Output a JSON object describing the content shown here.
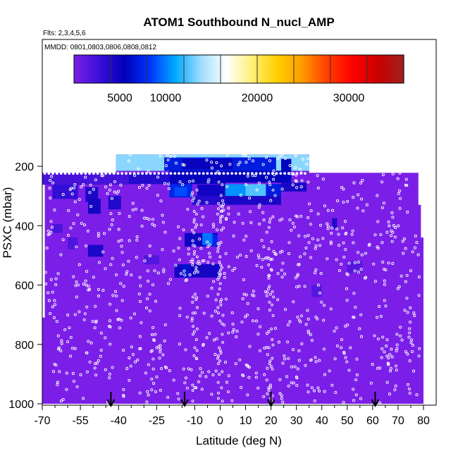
{
  "chart_data": {
    "type": "heatmap",
    "title": "ATOM1 Southbound N_nucl_AMP",
    "flights_note": "Flts: 2,3,4,5,6",
    "dates_note": "MMDD: 0801,0803,0806,0808,0812",
    "xlabel": "Latitude (deg N)",
    "ylabel": "PSXC (mbar)",
    "xlim": [
      -70,
      80
    ],
    "ylim": [
      1000,
      50
    ],
    "x_ticks": [
      -70,
      -55,
      -40,
      -25,
      -10,
      0,
      10,
      20,
      30,
      40,
      50,
      60,
      70,
      80
    ],
    "x_minor_ticks": [
      -65,
      -60,
      -50,
      -45,
      -35,
      -30,
      -20,
      -15,
      -5,
      5,
      15,
      25,
      35,
      45,
      55,
      65,
      75
    ],
    "y_ticks": [
      200,
      400,
      600,
      800,
      1000
    ],
    "colorbar": {
      "range": [
        0,
        36000
      ],
      "tick_labels": [
        5000,
        10000,
        20000,
        30000
      ],
      "stops": [
        "#7a1fe6",
        "#3a10d8",
        "#0000b8",
        "#0035ff",
        "#00aaff",
        "#9edcff",
        "#ffffff",
        "#fff07a",
        "#ffd000",
        "#ff9a00",
        "#ff3c00",
        "#ff0000",
        "#c80000",
        "#a02020"
      ],
      "divisions": [
        4000,
        8000,
        12000,
        16000,
        20000,
        24000,
        28000,
        32000,
        36000
      ]
    },
    "background_color": "#7b1fe8",
    "region_outline": [
      [
        -70,
        1000
      ],
      [
        -70,
        710
      ],
      [
        -69,
        710
      ],
      [
        -69,
        222
      ],
      [
        -41,
        222
      ],
      [
        -41,
        160
      ],
      [
        35,
        160
      ],
      [
        35,
        222
      ],
      [
        78,
        222
      ],
      [
        78,
        330
      ],
      [
        79,
        330
      ],
      [
        79,
        440
      ],
      [
        80,
        440
      ],
      [
        80,
        1000
      ]
    ],
    "cells": [
      {
        "x": [
          -41,
          35
        ],
        "p": [
          160,
          215
        ],
        "v": 13500
      },
      {
        "x": [
          -22,
          22
        ],
        "p": [
          170,
          215
        ],
        "v": 7000
      },
      {
        "x": [
          -15,
          5
        ],
        "p": [
          175,
          210
        ],
        "v": 5200
      },
      {
        "x": [
          2,
          24
        ],
        "p": [
          215,
          255
        ],
        "v": 5600
      },
      {
        "x": [
          -20,
          2
        ],
        "p": [
          215,
          260
        ],
        "v": 5200
      },
      {
        "x": [
          24,
          28
        ],
        "p": [
          175,
          255
        ],
        "v": 5800
      },
      {
        "x": [
          -36,
          -20
        ],
        "p": [
          222,
          260
        ],
        "v": 3800
      },
      {
        "x": [
          -70,
          -36
        ],
        "p": [
          222,
          262
        ],
        "v": 2200
      },
      {
        "x": [
          -66,
          -56
        ],
        "p": [
          262,
          310
        ],
        "v": 3200
      },
      {
        "x": [
          -53,
          -48
        ],
        "p": [
          270,
          320
        ],
        "v": 4200
      },
      {
        "x": [
          -52,
          -47
        ],
        "p": [
          310,
          360
        ],
        "v": 4600
      },
      {
        "x": [
          -44,
          -39
        ],
        "p": [
          300,
          345
        ],
        "v": 4000
      },
      {
        "x": [
          -20,
          -11
        ],
        "p": [
          260,
          305
        ],
        "v": 7500
      },
      {
        "x": [
          -18,
          -13
        ],
        "p": [
          270,
          300
        ],
        "v": 8800
      },
      {
        "x": [
          -9,
          2
        ],
        "p": [
          262,
          300
        ],
        "v": 4800
      },
      {
        "x": [
          2,
          10
        ],
        "p": [
          260,
          300
        ],
        "v": 10500
      },
      {
        "x": [
          10,
          18
        ],
        "p": [
          260,
          300
        ],
        "v": 12500
      },
      {
        "x": [
          18,
          24
        ],
        "p": [
          260,
          300
        ],
        "v": 7000
      },
      {
        "x": [
          2,
          24
        ],
        "p": [
          300,
          330
        ],
        "v": 4300
      },
      {
        "x": [
          -11,
          2
        ],
        "p": [
          300,
          330
        ],
        "v": 3800
      },
      {
        "x": [
          24,
          34
        ],
        "p": [
          255,
          285
        ],
        "v": 4400
      },
      {
        "x": [
          -14,
          -1
        ],
        "p": [
          425,
          470
        ],
        "v": 4800
      },
      {
        "x": [
          -7,
          -3
        ],
        "p": [
          425,
          465
        ],
        "v": 9800
      },
      {
        "x": [
          -3,
          -1
        ],
        "p": [
          430,
          470
        ],
        "v": 7500
      },
      {
        "x": [
          -52,
          -46
        ],
        "p": [
          465,
          505
        ],
        "v": 4200
      },
      {
        "x": [
          -18,
          0
        ],
        "p": [
          530,
          575
        ],
        "v": 4500
      },
      {
        "x": [
          -15,
          -12
        ],
        "p": [
          530,
          575
        ],
        "v": 6500
      },
      {
        "x": [
          44,
          46
        ],
        "p": [
          375,
          410
        ],
        "v": 4000
      },
      {
        "x": [
          -66,
          -62
        ],
        "p": [
          395,
          425
        ],
        "v": 2100
      },
      {
        "x": [
          -60,
          -56
        ],
        "p": [
          440,
          480
        ],
        "v": 1800
      },
      {
        "x": [
          50,
          56
        ],
        "p": [
          520,
          560
        ],
        "v": 1600
      },
      {
        "x": [
          -30,
          -24
        ],
        "p": [
          500,
          530
        ],
        "v": 1700
      },
      {
        "x": [
          36,
          40
        ],
        "p": [
          600,
          640
        ],
        "v": 1700
      }
    ],
    "arrows_lat": [
      -43,
      -14,
      20,
      61
    ],
    "sample_points": []
  }
}
